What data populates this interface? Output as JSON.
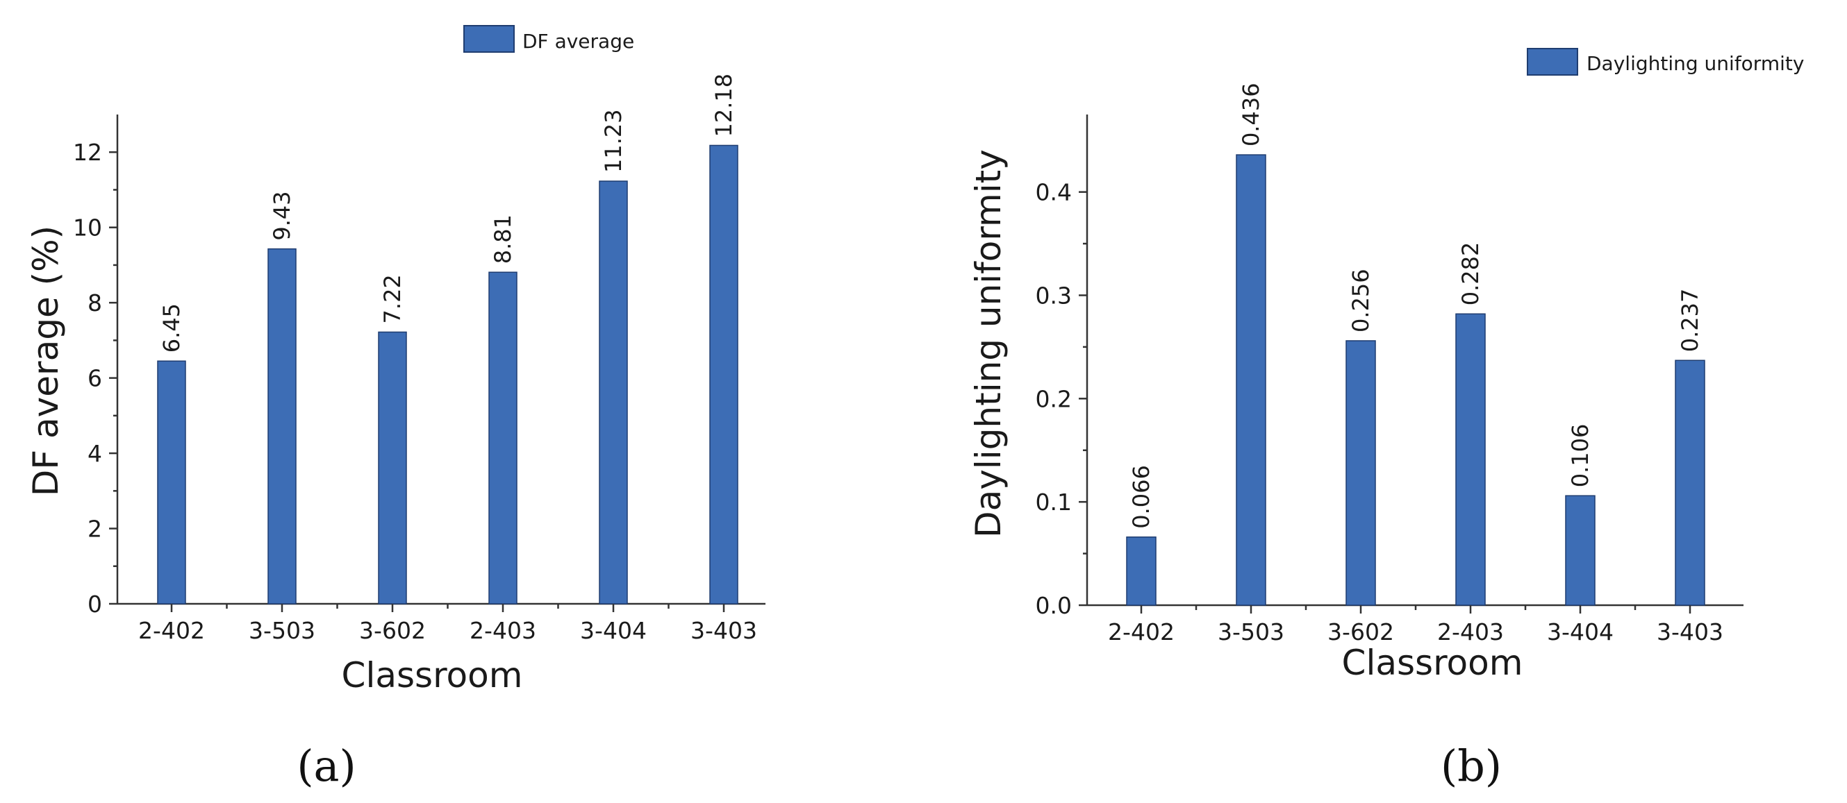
{
  "colors": {
    "bar": "#3d6db5",
    "bar_edge": "#1f3d70"
  },
  "panels": [
    {
      "panel_label": "(a)"
    },
    {
      "panel_label": "(b)"
    }
  ],
  "chart_data": [
    {
      "type": "bar",
      "title": "",
      "xlabel": "Classroom",
      "ylabel": "DF average (%)",
      "legend": "DF average",
      "legend_position": "top-center",
      "categories": [
        "2-402",
        "3-503",
        "3-602",
        "2-403",
        "3-404",
        "3-403"
      ],
      "values": [
        6.45,
        9.43,
        7.22,
        8.81,
        11.23,
        12.18
      ],
      "value_labels": [
        "6.45",
        "9.43",
        "7.22",
        "8.81",
        "11.23",
        "12.18"
      ],
      "ylim": [
        0,
        13.0
      ],
      "yticks": [
        0,
        2,
        4,
        6,
        8,
        10,
        12
      ],
      "ytick_labels": [
        "0",
        "2",
        "4",
        "6",
        "8",
        "10",
        "12"
      ],
      "grid": false
    },
    {
      "type": "bar",
      "title": "",
      "xlabel": "Classroom",
      "ylabel": "Daylighting uniformity",
      "legend": "Daylighting uniformity",
      "legend_position": "top-right",
      "categories": [
        "2-402",
        "3-503",
        "3-602",
        "2-403",
        "3-404",
        "3-403"
      ],
      "values": [
        0.066,
        0.436,
        0.256,
        0.282,
        0.106,
        0.237
      ],
      "value_labels": [
        "0.066",
        "0.436",
        "0.256",
        "0.282",
        "0.106",
        "0.237"
      ],
      "ylim": [
        0,
        0.475
      ],
      "yticks": [
        0.0,
        0.1,
        0.2,
        0.3,
        0.4
      ],
      "ytick_labels": [
        "0.0",
        "0.1",
        "0.2",
        "0.3",
        "0.4"
      ],
      "grid": false
    }
  ]
}
